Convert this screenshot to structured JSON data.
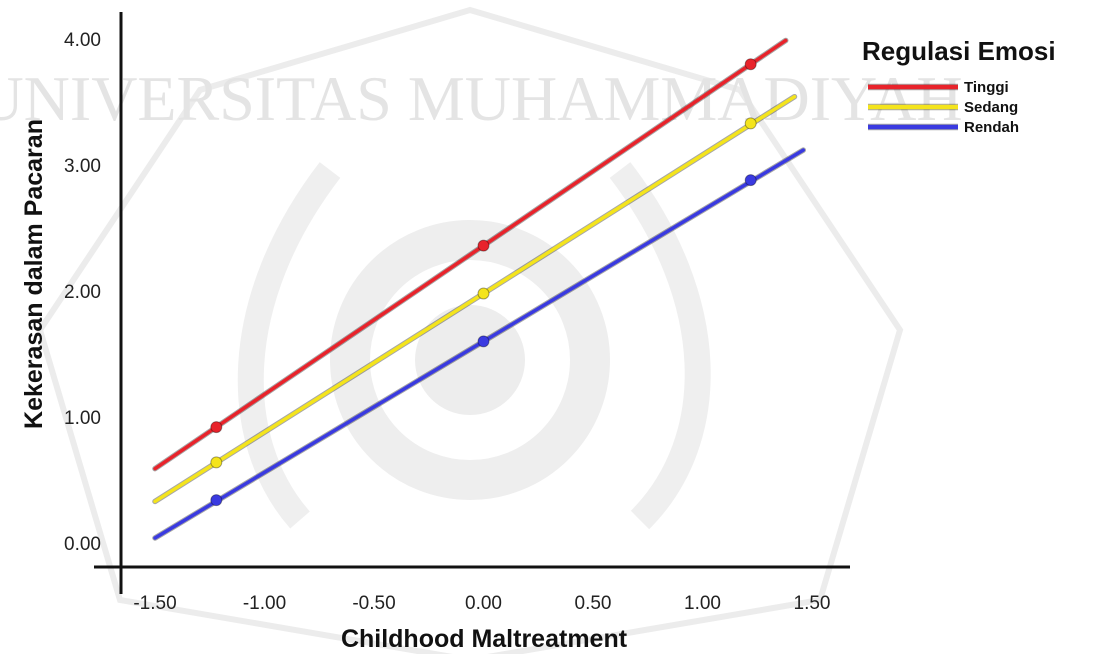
{
  "chart_data": {
    "type": "line",
    "xlabel": "Childhood Maltreatment",
    "ylabel": "Kekerasan dalam Pacaran",
    "xlim": [
      -1.5,
      1.5
    ],
    "ylim": [
      0,
      4
    ],
    "x_ticks": [
      -1.5,
      -1.0,
      -0.5,
      0.0,
      0.5,
      1.0,
      1.5
    ],
    "x_tick_labels": [
      "-1.50",
      "-1.00",
      "-0.50",
      "0.00",
      "0.50",
      "1.00",
      "1.50"
    ],
    "y_ticks": [
      0,
      1,
      2,
      3,
      4
    ],
    "y_tick_labels": [
      "0.00",
      "1.00",
      "2.00",
      "3.00",
      "4.00"
    ],
    "grid": false,
    "legend": {
      "title": "Regulasi Emosi",
      "position": "top-right"
    },
    "series": [
      {
        "name": "Tinggi",
        "color": "#e8232b",
        "x_range": [
          -1.5,
          1.38
        ],
        "intercept": 2.36,
        "slope": 1.18,
        "points": [
          {
            "x": -1.22,
            "y": 0.92
          },
          {
            "x": 0.0,
            "y": 2.36
          },
          {
            "x": 1.22,
            "y": 3.8
          }
        ]
      },
      {
        "name": "Sedang",
        "color": "#f4e41c",
        "x_range": [
          -1.5,
          1.42
        ],
        "intercept": 1.98,
        "slope": 1.1,
        "points": [
          {
            "x": -1.22,
            "y": 0.64
          },
          {
            "x": 0.0,
            "y": 1.98
          },
          {
            "x": 1.22,
            "y": 3.33
          }
        ]
      },
      {
        "name": "Rendah",
        "color": "#3a3ae0",
        "x_range": [
          -1.5,
          1.46
        ],
        "intercept": 1.6,
        "slope": 1.04,
        "points": [
          {
            "x": -1.22,
            "y": 0.34
          },
          {
            "x": 0.0,
            "y": 1.6
          },
          {
            "x": 1.22,
            "y": 2.88
          }
        ]
      }
    ]
  },
  "watermark": {
    "text": "UNIVERSITAS MUHAMMADIYAH",
    "kind": "university-seal"
  }
}
